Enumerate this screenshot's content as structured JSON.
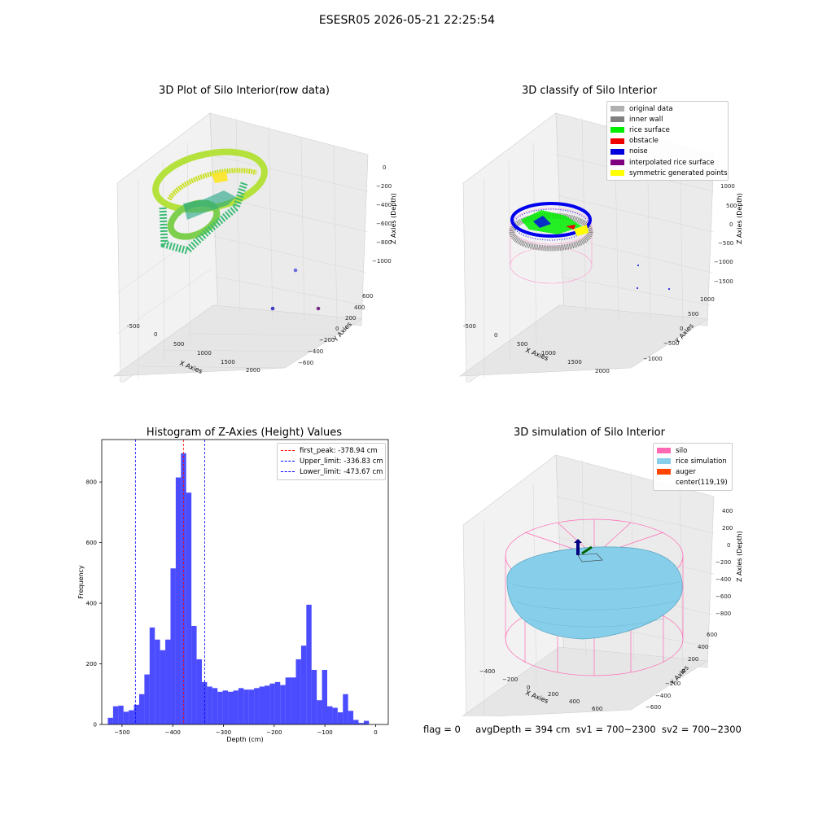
{
  "suptitle": "ESESR05 2026-05-21 22:25:54",
  "footer": {
    "flag": "flag = 0",
    "avg_depth": "avgDepth = 394 cm",
    "sv1": "sv1 = 700~2300",
    "sv2": "sv2 = 700~2300"
  },
  "panels": {
    "raw": {
      "title": "3D Plot of Silo Interior(row data)",
      "xlabel": "X Axies",
      "ylabel": "Y Axies",
      "zlabel": "Z Axies (Depth)",
      "xticks": [
        "-500",
        "0",
        "500",
        "1000",
        "1500",
        "2000"
      ],
      "yticks": [
        "600",
        "400",
        "200",
        "0",
        "−200",
        "−400",
        "−600"
      ],
      "zticks": [
        "0",
        "−200",
        "−400",
        "−600",
        "−800",
        "−1000"
      ]
    },
    "classify": {
      "title": "3D classify of Silo Interior",
      "xlabel": "X Axies",
      "ylabel": "Y Axies",
      "zlabel": "Z Axies (Depth)",
      "xticks": [
        "-500",
        "0",
        "500",
        "1000",
        "1500",
        "2000"
      ],
      "yticks": [
        "1000",
        "500",
        "0",
        "−500",
        "−1000"
      ],
      "zticks": [
        "1000",
        "500",
        "0",
        "−500",
        "−1000",
        "−1500"
      ],
      "legend": [
        {
          "label": "original data",
          "color": "#b0b0b0"
        },
        {
          "label": "inner wall",
          "color": "#808080"
        },
        {
          "label": "rice surface",
          "color": "#00ee00"
        },
        {
          "label": "obstacle",
          "color": "#ee0000"
        },
        {
          "label": "noise",
          "color": "#0000dd"
        },
        {
          "label": "interpolated rice surface",
          "color": "#800080"
        },
        {
          "label": "symmetric generated points",
          "color": "#ffff00"
        }
      ]
    },
    "simulation": {
      "title": "3D simulation of Silo Interior",
      "xlabel": "X Axies",
      "ylabel": "Y Axies",
      "zlabel": "Z Axies (Depth)",
      "xticks": [
        "−400",
        "−200",
        "0",
        "200",
        "400",
        "600"
      ],
      "yticks": [
        "600",
        "400",
        "200",
        "0",
        "−200",
        "−400",
        "−600"
      ],
      "zticks": [
        "400",
        "200",
        "0",
        "−200",
        "−400",
        "−600",
        "−800"
      ],
      "legend": [
        {
          "label": "silo",
          "color": "#ff69b4"
        },
        {
          "label": "rice simulation",
          "color": "#87ceeb"
        },
        {
          "label": "auger",
          "color": "#ff4500"
        },
        {
          "label": "center(119,19)",
          "color": ""
        }
      ]
    }
  },
  "chart_data": {
    "type": "bar",
    "title": "Histogram of Z-Axies (Height) Values",
    "xlabel": "Depth (cm)",
    "ylabel": "Frequency",
    "xlim": [
      -540,
      25
    ],
    "ylim": [
      0,
      940
    ],
    "xticks": [
      -500,
      -400,
      -300,
      -200,
      -100,
      0
    ],
    "xtick_labels": [
      "−500",
      "−400",
      "−300",
      "−200",
      "−100",
      "0"
    ],
    "yticks": [
      0,
      200,
      400,
      600,
      800
    ],
    "bar_color": "#0000ff",
    "bin_edges_start": -528,
    "bin_width": 10.3,
    "values": [
      22,
      60,
      62,
      42,
      47,
      65,
      100,
      165,
      320,
      280,
      245,
      280,
      515,
      815,
      895,
      765,
      325,
      215,
      140,
      125,
      120,
      108,
      112,
      108,
      112,
      120,
      115,
      115,
      120,
      125,
      128,
      135,
      140,
      130,
      155,
      155,
      215,
      260,
      395,
      180,
      80,
      180,
      60,
      55,
      40,
      100,
      45,
      15,
      5,
      12
    ],
    "vlines": [
      {
        "x": -378.94,
        "color": "#ff0000",
        "label": "first_peak: -378.94 cm"
      },
      {
        "x": -336.83,
        "color": "#0000ff",
        "label": "Upper_limit: -336.83 cm"
      },
      {
        "x": -473.67,
        "color": "#0000ff",
        "label": "Lower_limit: -473.67 cm"
      }
    ],
    "legend_position": "top-right"
  }
}
